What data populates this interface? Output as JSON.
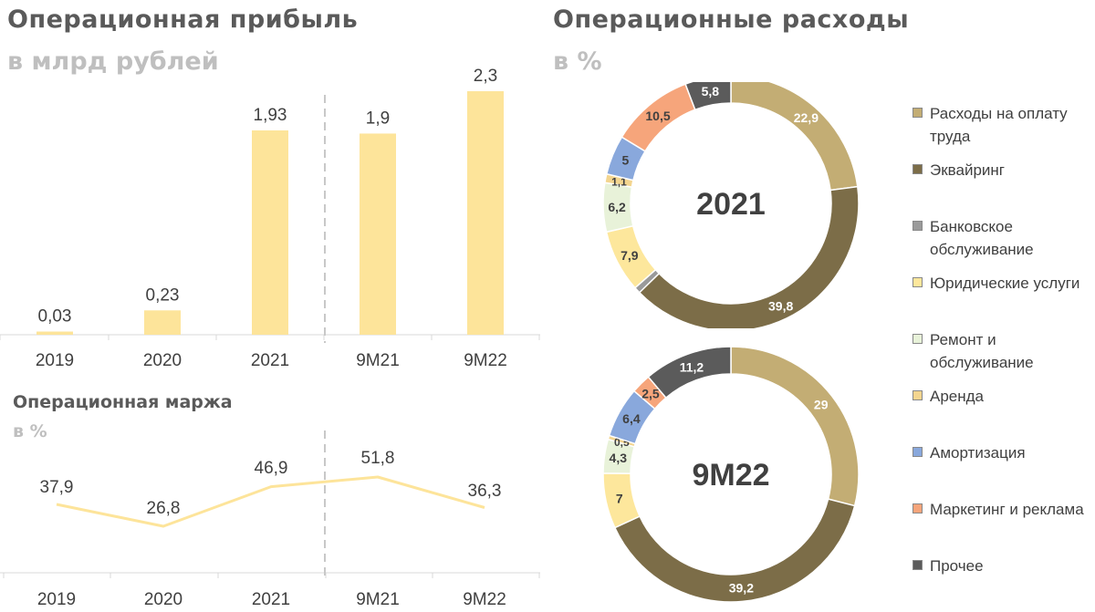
{
  "left_title": {
    "main": "Операционная прибыль",
    "sub": "в млрд рублей"
  },
  "margin_title": {
    "main": "Операционная маржа",
    "sub": "в %"
  },
  "right_title": {
    "main": "Операционные расходы",
    "sub": "в %"
  },
  "colors": {
    "bar": "#fde49a",
    "line": "#fde49a",
    "divider": "#c8c8c8",
    "axis": "#d9d9d9",
    "text": "#404040"
  },
  "chart_data": [
    {
      "type": "bar",
      "title": "Операционная прибыль",
      "subtitle": "в млрд рублей",
      "categories": [
        "2019",
        "2020",
        "2021",
        "9M21",
        "9M22"
      ],
      "values": [
        0.03,
        0.23,
        1.93,
        1.9,
        2.3
      ],
      "value_labels": [
        "0,03",
        "0,23",
        "1,93",
        "1,9",
        "2,3"
      ],
      "ylim": [
        0,
        2.3
      ],
      "grid": false,
      "divider_between": [
        "2021",
        "9M21"
      ]
    },
    {
      "type": "line",
      "title": "Операционная маржа",
      "subtitle": "в %",
      "categories": [
        "2019",
        "2020",
        "2021",
        "9M21",
        "9M22"
      ],
      "values": [
        37.9,
        26.8,
        46.9,
        51.8,
        36.3
      ],
      "value_labels": [
        "37,9",
        "26,8",
        "46,9",
        "51,8",
        "36,3"
      ],
      "grid": false,
      "divider_between": [
        "2021",
        "9M21"
      ]
    },
    {
      "type": "pie",
      "donut": true,
      "title": "Операционные расходы",
      "subtitle": "в %",
      "center_label": "2021",
      "slices": [
        {
          "category": "Расходы на оплату труда",
          "value": 22.9,
          "label": "22,9"
        },
        {
          "category": "Эквайринг",
          "value": 39.8,
          "label": "39,8"
        },
        {
          "category": "Банковское обслуживание",
          "value": 0.8,
          "label": ""
        },
        {
          "category": "Юридические услуги",
          "value": 7.9,
          "label": "7,9"
        },
        {
          "category": "Ремонт и обслуживание",
          "value": 6.2,
          "label": "6,2"
        },
        {
          "category": "Аренда",
          "value": 1.1,
          "label": "1,1"
        },
        {
          "category": "Амортизация",
          "value": 5.0,
          "label": "5"
        },
        {
          "category": "Маркетинг и реклама",
          "value": 10.5,
          "label": "10,5"
        },
        {
          "category": "Прочее",
          "value": 5.8,
          "label": "5,8"
        }
      ]
    },
    {
      "type": "pie",
      "donut": true,
      "title": "Операционные расходы",
      "subtitle": "в %",
      "center_label": "9M22",
      "slices": [
        {
          "category": "Расходы на оплату труда",
          "value": 29,
          "label": "29"
        },
        {
          "category": "Эквайринг",
          "value": 39.2,
          "label": "39,2"
        },
        {
          "category": "Банковское обслуживание",
          "value": 0,
          "label": ""
        },
        {
          "category": "Юридические услуги",
          "value": 7,
          "label": "7"
        },
        {
          "category": "Ремонт и обслуживание",
          "value": 4.3,
          "label": "4,3"
        },
        {
          "category": "Аренда",
          "value": 0.5,
          "label": "0,5"
        },
        {
          "category": "Амортизация",
          "value": 6.4,
          "label": "6,4"
        },
        {
          "category": "Маркетинг и реклама",
          "value": 2.5,
          "label": "2,5"
        },
        {
          "category": "Прочее",
          "value": 11.2,
          "label": "11,2"
        }
      ]
    }
  ],
  "legend": [
    {
      "label": "Расходы на оплату труда",
      "color": "#c3ad74"
    },
    {
      "label": "Эквайринг",
      "color": "#7c6d48"
    },
    {
      "label": "Банковское обслуживание",
      "color": "#9a9a9a"
    },
    {
      "label": "Юридические услуги",
      "color": "#fde79c"
    },
    {
      "label": "Ремонт и обслуживание",
      "color": "#e8f2d9"
    },
    {
      "label": "Аренда",
      "color": "#f3d58f"
    },
    {
      "label": "Амортизация",
      "color": "#89a8dc"
    },
    {
      "label": "Маркетинг и реклама",
      "color": "#f6a57b"
    },
    {
      "label": "Прочее",
      "color": "#5b5b5b"
    }
  ]
}
